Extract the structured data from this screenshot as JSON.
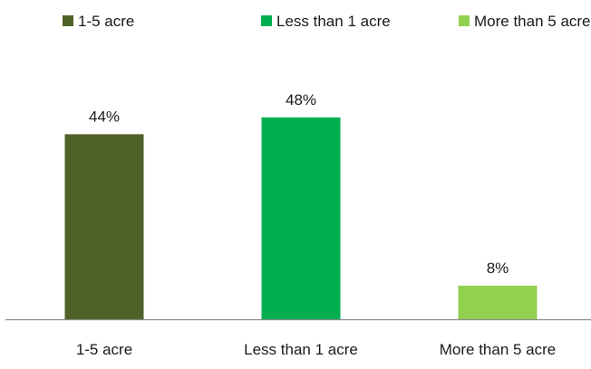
{
  "chart_data": {
    "type": "bar",
    "categories": [
      "1-5 acre",
      "Less than 1 acre",
      "More than 5 acre"
    ],
    "values": [
      44,
      48,
      8
    ],
    "value_labels": [
      "44%",
      "48%",
      "8%"
    ],
    "unit": "%",
    "ylim": [
      0,
      60
    ],
    "grid": false,
    "legend_position": "top",
    "legend": [
      {
        "label": "1-5 acre",
        "color": "#4f6228"
      },
      {
        "label": "Less than 1 acre",
        "color": "#00b050"
      },
      {
        "label": "More than 5 acre",
        "color": "#92d050"
      }
    ],
    "colors": [
      "#4f6228",
      "#00b050",
      "#92d050"
    ],
    "axis_color": "#8c8c8c"
  }
}
